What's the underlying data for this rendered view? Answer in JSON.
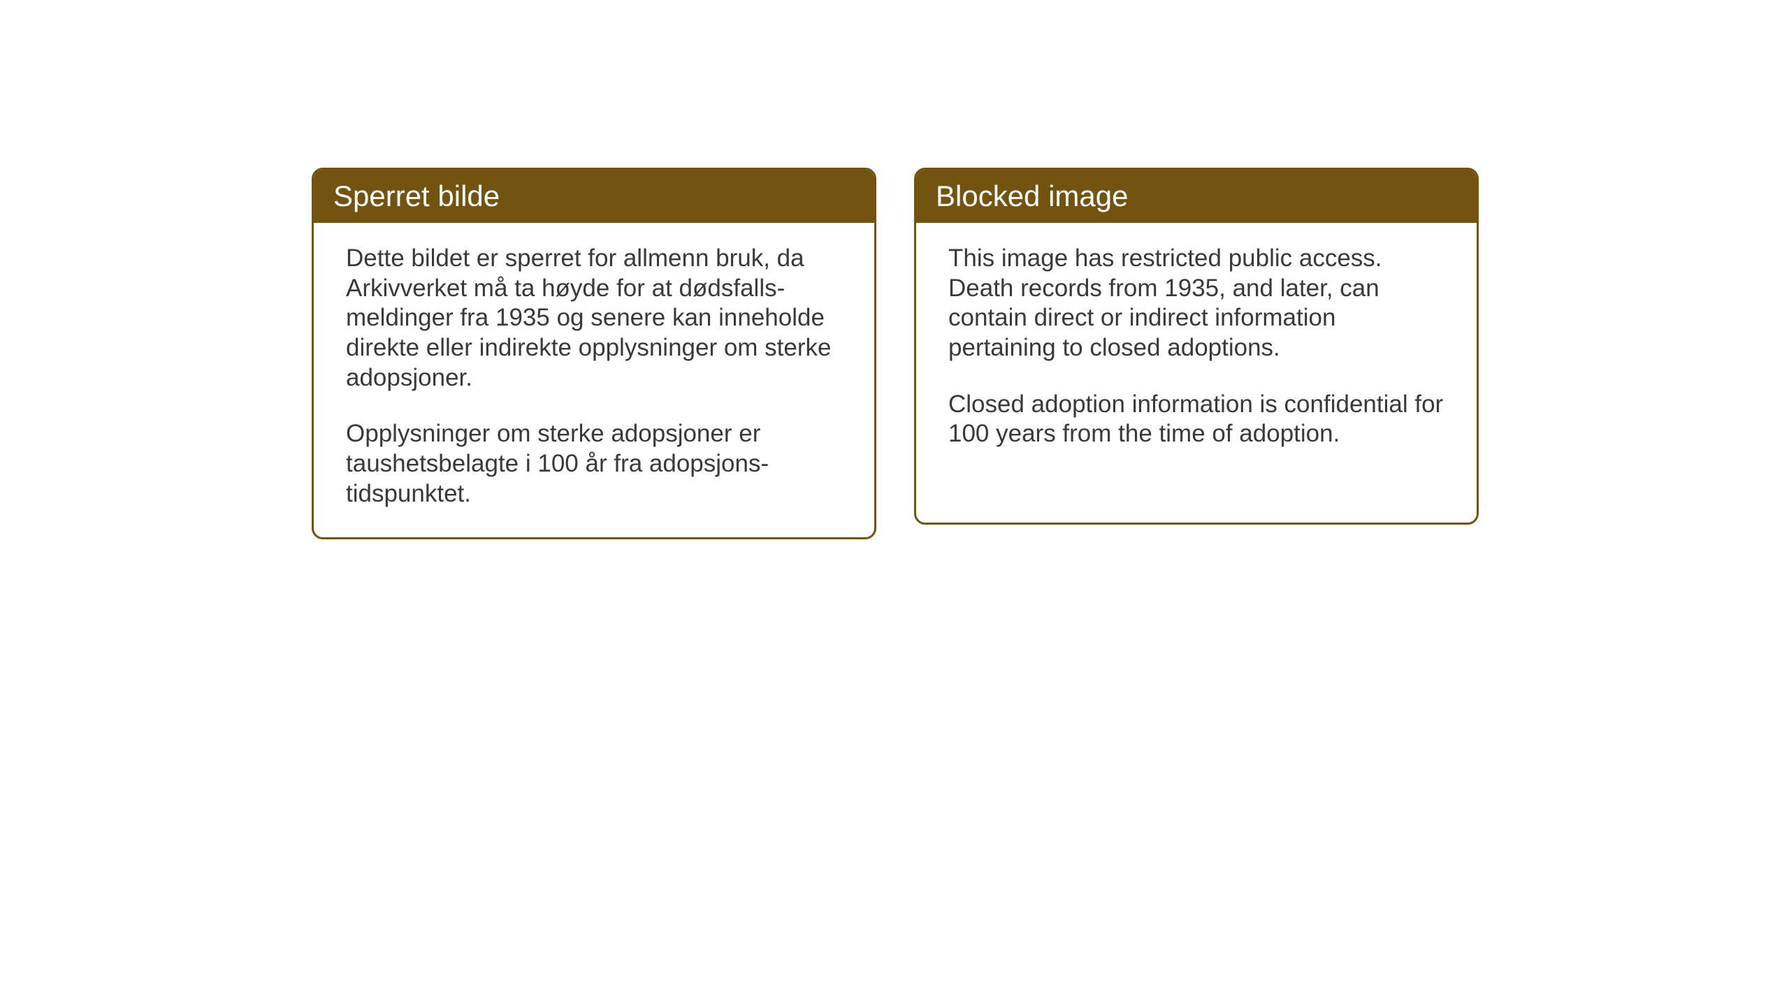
{
  "cards": {
    "norwegian": {
      "title": "Sperret bilde",
      "paragraph1": "Dette bildet er sperret for allmenn bruk, da Arkivverket må ta høyde for at dødsfalls-meldinger fra 1935 og senere kan inneholde direkte eller indirekte opplysninger om sterke adopsjoner.",
      "paragraph2": "Opplysninger om sterke adopsjoner er taushetsbelagte i 100 år fra adopsjons-tidspunktet."
    },
    "english": {
      "title": "Blocked image",
      "paragraph1": "This image has restricted public access. Death records from 1935, and later, can contain direct or indirect information pertaining to closed adoptions.",
      "paragraph2": "Closed adoption information is confidential for 100 years from the time of adoption."
    }
  },
  "styling": {
    "header_bg_color": "#735310",
    "header_text_color": "#ffffff",
    "border_color": "#735310",
    "body_text_color": "#393939",
    "page_bg_color": "#ffffff",
    "title_fontsize": 42,
    "body_fontsize": 35,
    "border_radius": 16,
    "border_width": 3
  }
}
